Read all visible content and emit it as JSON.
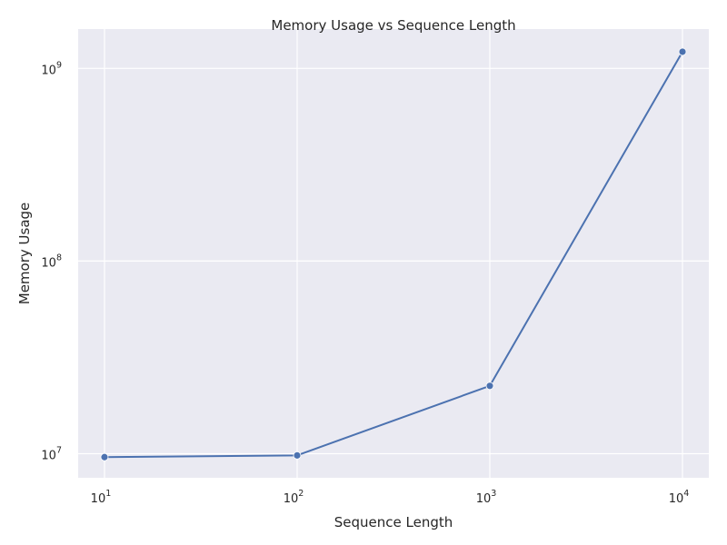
{
  "chart_data": {
    "type": "line",
    "title": "Memory Usage vs Sequence Length",
    "xlabel": "Sequence Length",
    "ylabel": "Memory Usage",
    "x_scale": "log",
    "y_scale": "log",
    "xlim": [
      7.3,
      13700
    ],
    "ylim": [
      7500000.0,
      1600000000.0
    ],
    "grid": true,
    "x_ticks": [
      {
        "value": 10,
        "base": "10",
        "exp": "1"
      },
      {
        "value": 100,
        "base": "10",
        "exp": "2"
      },
      {
        "value": 1000,
        "base": "10",
        "exp": "3"
      },
      {
        "value": 10000,
        "base": "10",
        "exp": "4"
      }
    ],
    "y_ticks": [
      {
        "value": 10000000,
        "base": "10",
        "exp": "7"
      },
      {
        "value": 100000000,
        "base": "10",
        "exp": "8"
      },
      {
        "value": 1000000000,
        "base": "10",
        "exp": "9"
      }
    ],
    "series": [
      {
        "color": "#4c72b0",
        "x": [
          10,
          100,
          1000,
          10000
        ],
        "y": [
          9600000,
          9800000,
          22500000,
          1220000000
        ]
      }
    ],
    "colors": {
      "plot_bg": "#eaeaf2",
      "grid": "#ffffff",
      "line": "#4c72b0"
    }
  }
}
